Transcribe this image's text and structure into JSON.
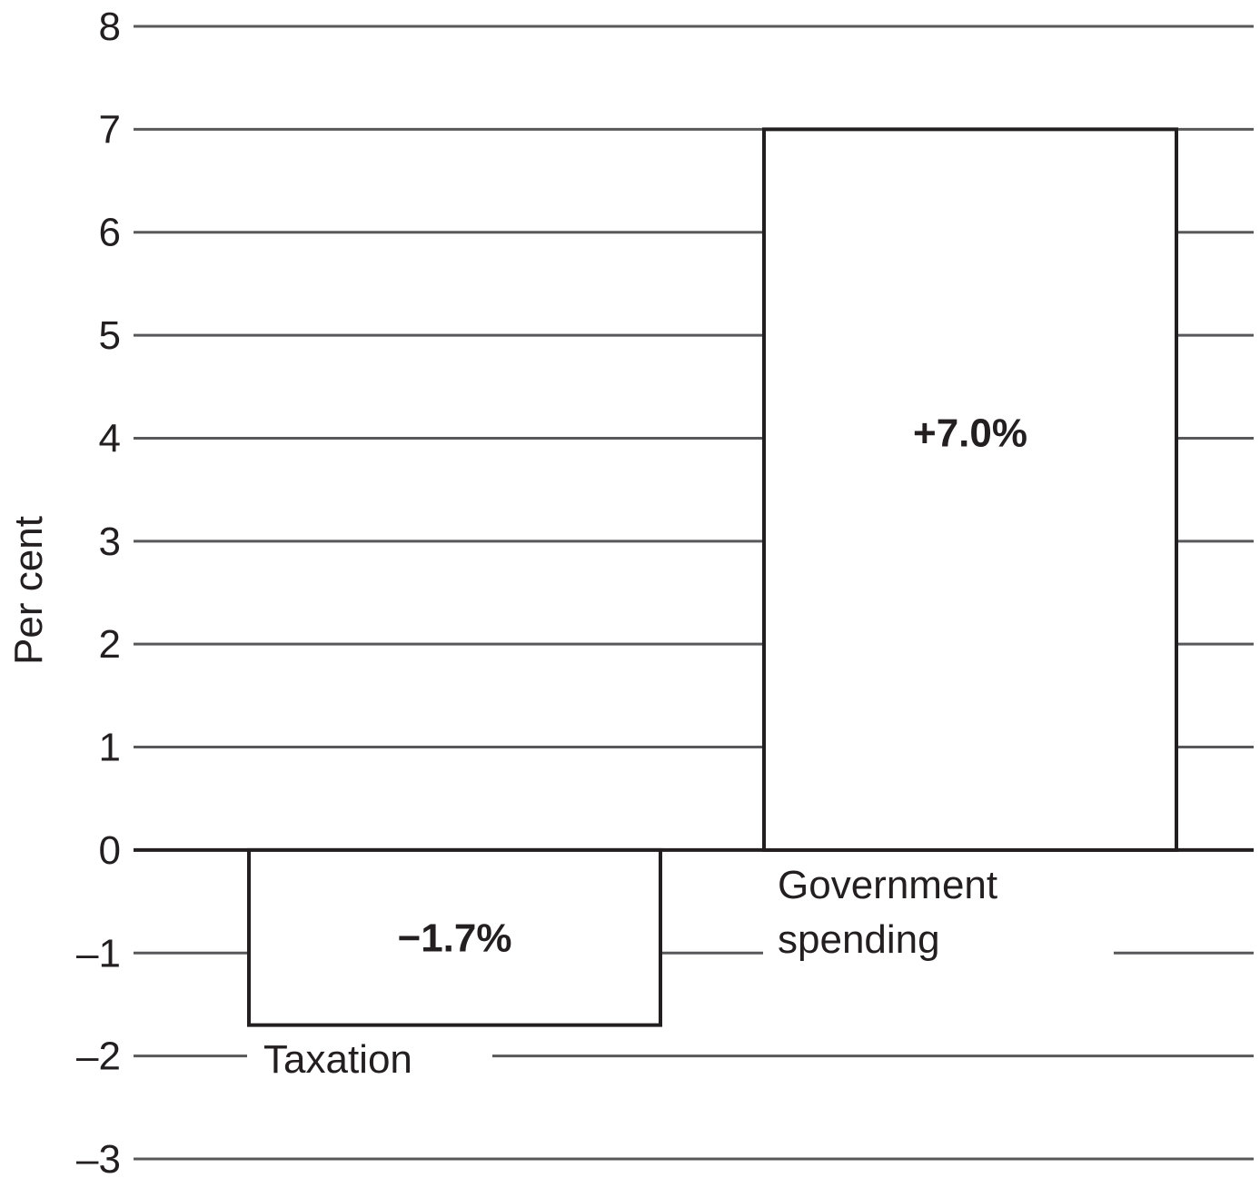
{
  "chart_data": {
    "type": "bar",
    "categories": [
      "Taxation",
      "Government spending"
    ],
    "category_lines": [
      [
        "Taxation"
      ],
      [
        "Government",
        "spending"
      ]
    ],
    "values": [
      -1.7,
      7.0
    ],
    "data_labels": [
      "−1.7%",
      "+7.0%"
    ],
    "title": "",
    "xlabel": "",
    "ylabel": "Per cent",
    "ylim": [
      -3,
      8
    ],
    "yticks": [
      8,
      7,
      6,
      5,
      4,
      3,
      2,
      1,
      0,
      -1,
      -2,
      -3
    ],
    "ytick_labels": [
      "8",
      "7",
      "6",
      "5",
      "4",
      "3",
      "2",
      "1",
      "0",
      "–1",
      "–2",
      "–3"
    ],
    "grid": true,
    "legend": "none",
    "colors": {
      "bar_fill": "#ffffff",
      "bar_stroke": "#231f20",
      "grid": "#58585a",
      "text": "#231f20"
    }
  }
}
